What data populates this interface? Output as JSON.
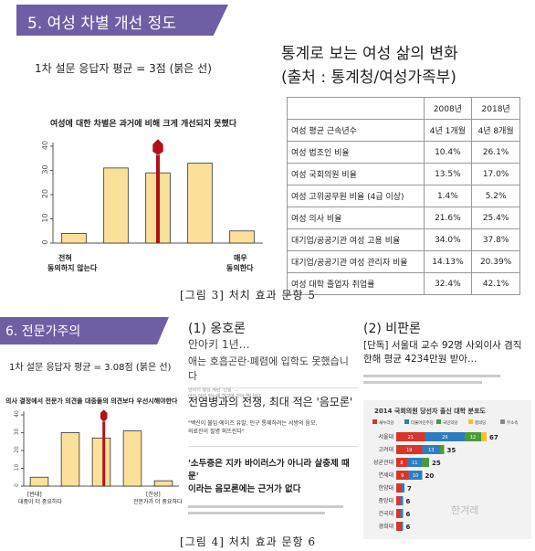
{
  "section5": {
    "banner": "5. 여성 차별 개선 정도",
    "survey_note": "1차 설문 응답자 평균 = 3점 (붉은 선)",
    "chart_title": "여성에 대한 차별은 과거에 비해 크게 개선되지 못했다",
    "left_label_1": "전혀",
    "left_label_2": "동의하지 않는다",
    "right_label_1": "매우",
    "right_label_2": "동의한다"
  },
  "stats": {
    "title_line1": "통계로 보는 여성 삶의 변화",
    "title_line2": "(출처 : 통계청/여성가족부)",
    "header": [
      "",
      "2008년",
      "2018년"
    ],
    "rows": [
      [
        "여성 평균 근속년수",
        "4년 1개월",
        "4년 8개월"
      ],
      [
        "여성 법조인 비율",
        "10.4%",
        "26.1%"
      ],
      [
        "여성 국회의원 비율",
        "13.5%",
        "17.0%"
      ],
      [
        "여성 고위공무원 비율 (4급 이상)",
        "1.4%",
        "5.2%"
      ],
      [
        "여성 의사 비율",
        "21.6%",
        "25.4%"
      ],
      [
        "대기업/공공기관 여성 고용 비율",
        "34.0%",
        "37.8%"
      ],
      [
        "대기업/공공기관 여성 관리자 비율",
        "14.13%",
        "20.39%"
      ],
      [
        "여성 대학 졸업자 취업률",
        "32.4%",
        "42.1%"
      ]
    ]
  },
  "caption3": "[그림 3] 처치 효과 문항 5",
  "section6": {
    "banner": "6. 전문가주의",
    "survey_note": "1차 설문 응답자 평균 = 3.08점 (붉은 선)",
    "chart_title": "의사 결정에서 전문가 의견을 대중들의 의견보다 우선시해야한다",
    "left_label_1": "[반대]",
    "left_label_2": "대중이 더 중요하다",
    "right_label_1": "[찬성]",
    "right_label_2": "전문가가 더 중요하다"
  },
  "opposition": {
    "heading": "(1) 옹호론",
    "line1": "안아키 1년…",
    "line2": "애는 호흡곤란·폐렴에 입학도 못했습니다",
    "small1": "안아키 행성 재판 '진실' …",
    "small2": "아이 이야 하는데 학교에 가야 하나요?",
    "headline1": "전염병과의 전쟁, 최대 적은 '음모론'",
    "sub1": "\"백신이 불임·에이즈 유발, 인구 통제하려는 서방의 음모.",
    "sub2": "의료진이 질병 퍼뜨린다\"",
    "headline2a": "'소두증은 지카 바이러스가 아니라 살충제 때문'",
    "headline2b": "이라는 음모론에는 근거가 없다"
  },
  "critique": {
    "heading": "(2) 비판론",
    "headline_a": "[단독] 서울대 교수 92명 사외이사 겸직",
    "headline_b": "한해 평균 4234만원 받아…",
    "chart_title": "2014 국회의원 당선자 출신 대학 분포도",
    "legend": [
      "새누리당",
      "더불어민주당",
      "국민의당",
      "정의당",
      "무소속"
    ],
    "legend_colors": [
      "#d9352b",
      "#2f7dc1",
      "#4a9a3c",
      "#f3c130",
      "#888888"
    ],
    "universities": [
      "서울대",
      "고려대",
      "성균관대",
      "연세대",
      "한양대",
      "중앙대",
      "건국대",
      "경희대"
    ],
    "values": [
      {
        "segments": [
          21,
          29,
          12,
          4
        ],
        "total": "67"
      },
      {
        "segments": [
          19,
          13,
          3
        ],
        "total": "35"
      },
      {
        "segments": [
          8,
          11,
          5
        ],
        "total": "25"
      },
      {
        "segments": [
          9,
          10
        ],
        "total": "20"
      },
      {
        "segments": [
          4,
          2
        ],
        "total": "7"
      },
      {
        "segments": [
          3,
          2
        ],
        "total": "6"
      },
      {
        "segments": [
          3,
          2
        ],
        "total": "6"
      },
      {
        "segments": [
          4,
          1
        ],
        "total": "6"
      }
    ],
    "watermark": "한겨레"
  },
  "caption4": "[그림 4] 처치 효과 문항 6",
  "chart_data": [
    {
      "type": "bar",
      "title": "여성에 대한 차별은 과거에 비해 크게 개선되지 못했다",
      "categories": [
        "1",
        "2",
        "3",
        "4",
        "5"
      ],
      "values": [
        4,
        31,
        29,
        33,
        5
      ],
      "ylim": [
        0,
        40
      ],
      "yticks": [
        0,
        10,
        20,
        30,
        40
      ],
      "mean_line": 3
    },
    {
      "type": "bar",
      "title": "의사 결정에서 전문가 의견을 대중들의 의견보다 우선시해야한다",
      "categories": [
        "1",
        "2",
        "3",
        "4",
        "5"
      ],
      "values": [
        5,
        30,
        27,
        31,
        3
      ],
      "ylim": [
        0,
        40
      ],
      "yticks": [
        0,
        10,
        20,
        30,
        40
      ],
      "mean_line": 3.08
    }
  ]
}
